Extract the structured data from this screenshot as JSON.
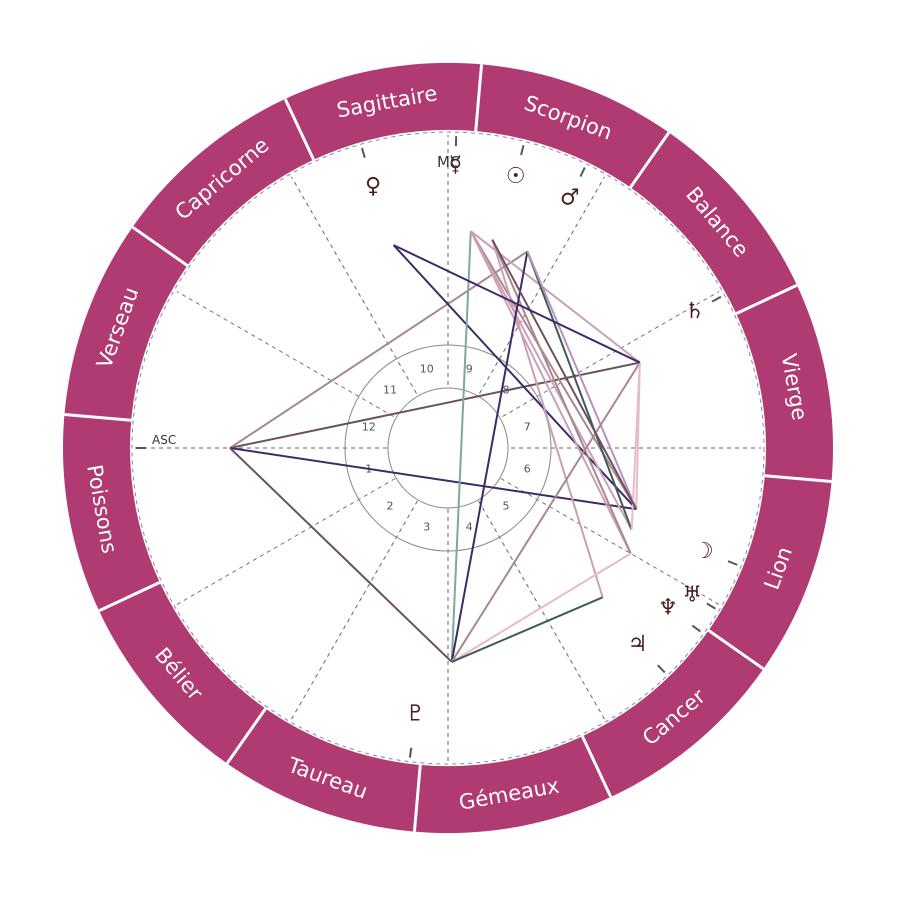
{
  "colors": {
    "band": "#b03a72",
    "band_text": "#ffffff",
    "divider": "#ffffff",
    "dashed": "#666666",
    "glyph": "#4a1f1f",
    "aspect_palette": [
      "#3d2a6b",
      "#a9878f",
      "#caa0b5",
      "#6a5060",
      "#7fa89d",
      "#3e5c52",
      "#e8b9c9",
      "#b890c4"
    ]
  },
  "zodiac": [
    {
      "name": "Bélier",
      "icon": "aries"
    },
    {
      "name": "Taureau",
      "icon": "taurus"
    },
    {
      "name": "Gémeaux",
      "icon": "gemini"
    },
    {
      "name": "Cancer",
      "icon": "cancer"
    },
    {
      "name": "Lion",
      "icon": "leo"
    },
    {
      "name": "Vierge",
      "icon": "virgo"
    },
    {
      "name": "Balance",
      "icon": "libra"
    },
    {
      "name": "Scorpion",
      "icon": "scorpio"
    },
    {
      "name": "Sagittaire",
      "icon": "sagittarius"
    },
    {
      "name": "Capricorne",
      "icon": "capricorn"
    },
    {
      "name": "Verseau",
      "icon": "aquarius"
    },
    {
      "name": "Poissons",
      "icon": "pisces"
    }
  ],
  "axes": {
    "asc": "ASC",
    "mc": "MC"
  },
  "houses": [
    "1",
    "2",
    "3",
    "4",
    "5",
    "6",
    "7",
    "8",
    "9",
    "10",
    "11",
    "12"
  ],
  "planets": [
    {
      "key": "venus",
      "glyph": "♀",
      "icon": "venus-icon"
    },
    {
      "key": "mercury",
      "glyph": "☿",
      "icon": "mercury-icon"
    },
    {
      "key": "sun",
      "glyph": "☉",
      "icon": "sun-icon"
    },
    {
      "key": "mars",
      "glyph": "♂",
      "icon": "mars-icon"
    },
    {
      "key": "saturn",
      "glyph": "♄",
      "icon": "saturn-icon"
    },
    {
      "key": "moon",
      "glyph": "☽",
      "icon": "moon-icon"
    },
    {
      "key": "uranus",
      "glyph": "♅",
      "icon": "uranus-icon"
    },
    {
      "key": "neptune",
      "glyph": "♆",
      "icon": "neptune-icon"
    },
    {
      "key": "jupiter",
      "glyph": "♃",
      "icon": "jupiter-icon"
    },
    {
      "key": "pluto",
      "glyph": "♇",
      "icon": "pluto-icon"
    }
  ]
}
